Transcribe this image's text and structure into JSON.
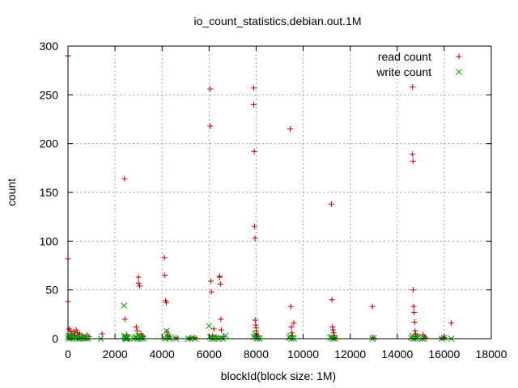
{
  "chart_data": {
    "type": "scatter",
    "title": "io_count_statistics.debian.out.1M",
    "xlabel": "blockId(block size: 1M)",
    "ylabel": "count",
    "xlim": [
      0,
      18000
    ],
    "ylim": [
      0,
      300
    ],
    "xticks": [
      0,
      2000,
      4000,
      6000,
      8000,
      10000,
      12000,
      14000,
      16000,
      18000
    ],
    "yticks": [
      0,
      50,
      100,
      150,
      200,
      250,
      300
    ],
    "grid": true,
    "legend_position": "top-right",
    "series": [
      {
        "name": "read count",
        "marker": "plus",
        "color": "#c00000",
        "points": [
          [
            0,
            290
          ],
          [
            0,
            82
          ],
          [
            0,
            38
          ],
          [
            50,
            10
          ],
          [
            100,
            8
          ],
          [
            150,
            5
          ],
          [
            200,
            3
          ],
          [
            250,
            7
          ],
          [
            300,
            4
          ],
          [
            350,
            9
          ],
          [
            400,
            6
          ],
          [
            450,
            2
          ],
          [
            500,
            5
          ],
          [
            600,
            3
          ],
          [
            700,
            1
          ],
          [
            800,
            4
          ],
          [
            900,
            2
          ],
          [
            1450,
            5
          ],
          [
            2400,
            164
          ],
          [
            2420,
            20
          ],
          [
            2450,
            2
          ],
          [
            2500,
            4
          ],
          [
            2900,
            12
          ],
          [
            2950,
            8
          ],
          [
            3000,
            63
          ],
          [
            3000,
            57
          ],
          [
            3050,
            54
          ],
          [
            3100,
            5
          ],
          [
            3150,
            3
          ],
          [
            3200,
            2
          ],
          [
            4100,
            83
          ],
          [
            4120,
            65
          ],
          [
            4150,
            39
          ],
          [
            4180,
            37
          ],
          [
            4200,
            7
          ],
          [
            4250,
            3
          ],
          [
            4300,
            2
          ],
          [
            4600,
            1
          ],
          [
            5200,
            1
          ],
          [
            5400,
            1
          ],
          [
            6050,
            256
          ],
          [
            6050,
            218
          ],
          [
            6080,
            59
          ],
          [
            6100,
            48
          ],
          [
            6150,
            3
          ],
          [
            6200,
            10
          ],
          [
            6300,
            2
          ],
          [
            6450,
            64
          ],
          [
            6450,
            63
          ],
          [
            6480,
            56
          ],
          [
            6500,
            20
          ],
          [
            6520,
            9
          ],
          [
            6600,
            2
          ],
          [
            7900,
            257
          ],
          [
            7900,
            240
          ],
          [
            7920,
            192
          ],
          [
            7930,
            115
          ],
          [
            7950,
            103
          ],
          [
            7960,
            19
          ],
          [
            7980,
            14
          ],
          [
            8000,
            11
          ],
          [
            8000,
            8
          ],
          [
            8020,
            5
          ],
          [
            8050,
            2
          ],
          [
            8080,
            3
          ],
          [
            9450,
            215
          ],
          [
            9480,
            33
          ],
          [
            9500,
            12
          ],
          [
            9520,
            6
          ],
          [
            9550,
            3
          ],
          [
            9600,
            16
          ],
          [
            11200,
            138
          ],
          [
            11220,
            40
          ],
          [
            11250,
            12
          ],
          [
            11270,
            9
          ],
          [
            11300,
            6
          ],
          [
            11320,
            3
          ],
          [
            11350,
            1
          ],
          [
            12950,
            33
          ],
          [
            12980,
            1
          ],
          [
            14650,
            258
          ],
          [
            14650,
            189
          ],
          [
            14670,
            182
          ],
          [
            14680,
            50
          ],
          [
            14700,
            33
          ],
          [
            14720,
            27
          ],
          [
            14740,
            17
          ],
          [
            14760,
            8
          ],
          [
            14780,
            5
          ],
          [
            14800,
            2
          ],
          [
            14850,
            3
          ],
          [
            15100,
            4
          ],
          [
            15150,
            2
          ],
          [
            15200,
            1
          ],
          [
            15900,
            1
          ],
          [
            16000,
            1
          ],
          [
            16300,
            16
          ]
        ]
      },
      {
        "name": "write count",
        "marker": "cross",
        "color": "#00a000",
        "points": [
          [
            0,
            1
          ],
          [
            30,
            3
          ],
          [
            60,
            0
          ],
          [
            100,
            2
          ],
          [
            150,
            1
          ],
          [
            200,
            0
          ],
          [
            250,
            4
          ],
          [
            300,
            1
          ],
          [
            350,
            2
          ],
          [
            400,
            0
          ],
          [
            450,
            1
          ],
          [
            500,
            0
          ],
          [
            550,
            2
          ],
          [
            600,
            1
          ],
          [
            650,
            0
          ],
          [
            700,
            1
          ],
          [
            750,
            0
          ],
          [
            800,
            1
          ],
          [
            850,
            0
          ],
          [
            1400,
            0
          ],
          [
            2380,
            34
          ],
          [
            2400,
            3
          ],
          [
            2420,
            1
          ],
          [
            2440,
            0
          ],
          [
            2460,
            2
          ],
          [
            2480,
            0
          ],
          [
            2500,
            1
          ],
          [
            2520,
            0
          ],
          [
            2540,
            1
          ],
          [
            2800,
            0
          ],
          [
            2850,
            1
          ],
          [
            2900,
            2
          ],
          [
            2950,
            0
          ],
          [
            3000,
            3
          ],
          [
            3050,
            1
          ],
          [
            3100,
            0
          ],
          [
            3150,
            1
          ],
          [
            3200,
            0
          ],
          [
            4100,
            1
          ],
          [
            4150,
            0
          ],
          [
            4200,
            8
          ],
          [
            4250,
            2
          ],
          [
            4300,
            0
          ],
          [
            4350,
            1
          ],
          [
            4600,
            0
          ],
          [
            5100,
            0
          ],
          [
            5200,
            0
          ],
          [
            5300,
            1
          ],
          [
            5400,
            0
          ],
          [
            6000,
            13
          ],
          [
            6050,
            2
          ],
          [
            6100,
            0
          ],
          [
            6150,
            1
          ],
          [
            6200,
            0
          ],
          [
            6300,
            1
          ],
          [
            6400,
            0
          ],
          [
            6500,
            1
          ],
          [
            6600,
            0
          ],
          [
            6700,
            3
          ],
          [
            7900,
            2
          ],
          [
            7950,
            5
          ],
          [
            8000,
            1
          ],
          [
            8050,
            0
          ],
          [
            8100,
            1
          ],
          [
            8150,
            0
          ],
          [
            9400,
            1
          ],
          [
            9450,
            3
          ],
          [
            9500,
            0
          ],
          [
            9550,
            1
          ],
          [
            9600,
            0
          ],
          [
            11150,
            1
          ],
          [
            11200,
            2
          ],
          [
            11250,
            0
          ],
          [
            11300,
            1
          ],
          [
            11350,
            0
          ],
          [
            12950,
            0
          ],
          [
            13000,
            1
          ],
          [
            14600,
            1
          ],
          [
            14650,
            3
          ],
          [
            14700,
            0
          ],
          [
            14750,
            1
          ],
          [
            14800,
            0
          ],
          [
            14850,
            2
          ],
          [
            15050,
            0
          ],
          [
            15100,
            1
          ],
          [
            15150,
            0
          ],
          [
            15900,
            0
          ],
          [
            16000,
            1
          ],
          [
            16300,
            0
          ]
        ]
      }
    ]
  }
}
